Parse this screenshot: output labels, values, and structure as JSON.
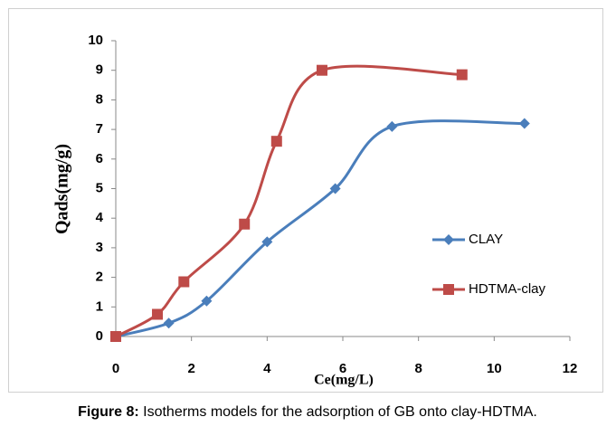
{
  "chart_data": {
    "type": "line",
    "x_label": "Ce(mg/L)",
    "y_label": "Qads(mg/g)",
    "caption_label": "Figure 8:",
    "caption": "Isotherms models for the adsorption of GB onto clay-HDTMA.",
    "series": [
      {
        "name": "CLAY",
        "color": "#4a7ebb",
        "marker": "diamond",
        "x": [
          0,
          1.4,
          2.4,
          4.0,
          5.8,
          7.3,
          10.8
        ],
        "values": [
          0,
          0.45,
          1.2,
          3.2,
          5.0,
          7.1,
          7.2
        ]
      },
      {
        "name": "HDTMA-clay",
        "color": "#be4b48",
        "marker": "square",
        "x": [
          0,
          1.1,
          1.8,
          3.4,
          4.25,
          5.45,
          9.15
        ],
        "values": [
          0,
          0.75,
          1.85,
          3.8,
          6.6,
          9.0,
          8.85
        ]
      }
    ],
    "xlim": [
      0,
      12
    ],
    "xticks": [
      0,
      2,
      4,
      6,
      8,
      10,
      12
    ],
    "ylim": [
      0,
      10
    ],
    "yticks": [
      0,
      1,
      2,
      3,
      4,
      5,
      6,
      7,
      8,
      9,
      10
    ],
    "grid": false,
    "smooth": true,
    "legend": "right"
  }
}
